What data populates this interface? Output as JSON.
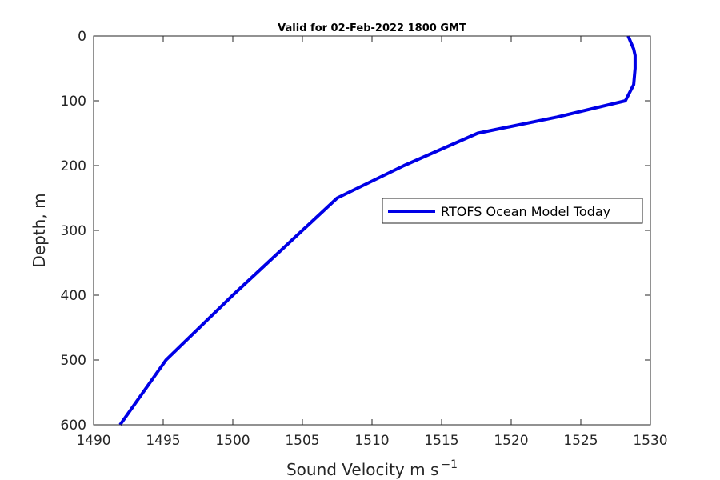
{
  "chart_data": {
    "type": "line",
    "title": "Valid for 02-Feb-2022 1800 GMT",
    "xlabel": "Sound Velocity m s",
    "xlabel_superscript": "−1",
    "ylabel": "Depth, m",
    "xlim": [
      1490,
      1530
    ],
    "ylim": [
      0,
      600
    ],
    "y_reversed": true,
    "x_ticks": [
      1490,
      1495,
      1500,
      1505,
      1510,
      1515,
      1520,
      1525,
      1530
    ],
    "y_ticks": [
      0,
      100,
      200,
      300,
      400,
      500,
      600
    ],
    "grid": false,
    "legend_position": "right-middle",
    "series": [
      {
        "name": "RTOFS Ocean Model Today",
        "color": "#0000e6",
        "x": [
          1528.4,
          1528.6,
          1528.8,
          1528.9,
          1528.9,
          1528.8,
          1528.2,
          1523.3,
          1517.6,
          1512.3,
          1507.5,
          1500.0,
          1495.2,
          1491.9
        ],
        "y": [
          0,
          10,
          20,
          30,
          50,
          75,
          100,
          125,
          150,
          200,
          250,
          400,
          500,
          600
        ]
      }
    ]
  }
}
